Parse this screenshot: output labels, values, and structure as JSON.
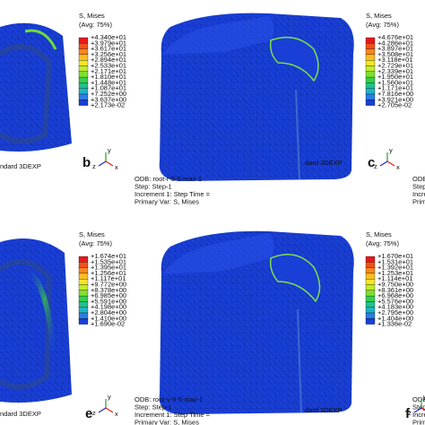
{
  "legends": [
    {
      "title": "S, Mises",
      "avg": "(Avg: 75%)",
      "values": [
        "+4.340e+01",
        "+3.979e+01",
        "+3.617e+01",
        "+3.256e+01",
        "+2.894e+01",
        "+2.533e+01",
        "+2.171e+01",
        "+1.810e+01",
        "+1.448e+01",
        "+1.087e+01",
        "+7.252e+00",
        "+3.637e+00",
        "+2.173e-02"
      ]
    },
    {
      "title": "S, Mises",
      "avg": "(Avg: 75%)",
      "values": [
        "+4.676e+01",
        "+4.286e+01",
        "+3.897e+01",
        "+3.508e+01",
        "+3.118e+01",
        "+2.729e+01",
        "+2.339e+01",
        "+1.950e+01",
        "+1.560e+01",
        "+1.171e+01",
        "+7.816e+00",
        "+3.921e+00",
        "+2.705e-02"
      ]
    },
    {
      "title": "S, Mises",
      "avg": "(Avg: 75%)",
      "values": [
        "+1.674e+01",
        "+1.535e+01",
        "+1.395e+01",
        "+1.256e+01",
        "+1.117e+01",
        "+9.772e+00",
        "+8.378e+00",
        "+6.985e+00",
        "+5.591e+00",
        "+4.198e+00",
        "+2.804e+00",
        "+1.410e+00",
        "+1.690e-02"
      ]
    },
    {
      "title": "S, Mises",
      "avg": "(Avg: 75%)",
      "values": [
        "+1.670e+01",
        "+1.531e+01",
        "+1.392e+01",
        "+1.253e+01",
        "+1.114e+01",
        "+9.750e+00",
        "+8.361e+00",
        "+6.968e+00",
        "+5.576e+00",
        "+4.183e+00",
        "+2.795e+00",
        "+1.404e+00",
        "+1.336e-02"
      ]
    }
  ],
  "info_blocks": [
    {
      "lines": [
        "ODB: root-r-5-5-max-1",
        "Step: Step-1",
        "Increment    1: Step Time =",
        "Primary Var: S, Mises"
      ]
    },
    {
      "lines": [
        "ODB: root-v-5-5-max-1",
        "Step: Step-1",
        "Increment    1: Step Time =",
        "Primary Var: S, Mises"
      ]
    },
    {
      "lines": [
        "ODB:",
        "Step",
        "Incre",
        "Prim"
      ]
    },
    {
      "lines": [
        "ODB:",
        "Step",
        "Incre",
        "Prim"
      ]
    }
  ],
  "panel_labels": [
    "b",
    "c",
    "e",
    "f"
  ],
  "fragments": [
    "ndard 3DEXP",
    "dard 3DEXP"
  ],
  "triad_labels": [
    "y",
    "z",
    "x"
  ]
}
